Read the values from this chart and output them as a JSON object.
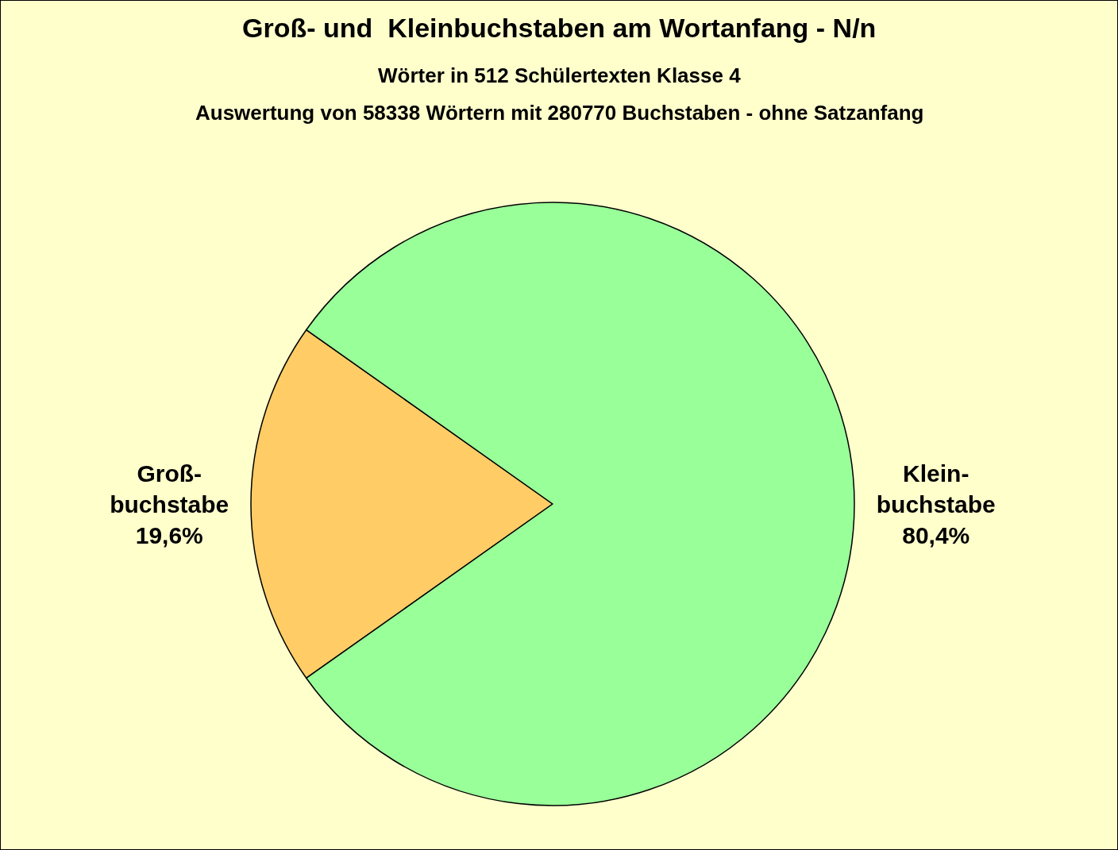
{
  "chart_data": {
    "type": "pie",
    "title": "Groß- und  Kleinbuchstaben am Wortanfang - N/n",
    "subtitle": "Wörter in 512 Schülertexten Klasse 4\nAuswertung von 58338 Wörtern mit 280770 Buchstaben - ohne Satzanfang",
    "categories": [
      "Groß-\nbuchstabe",
      "Klein-\nbuchstabe"
    ],
    "values": [
      19.6,
      80.4
    ],
    "value_labels": [
      "19,6%",
      "80,4%"
    ],
    "colors": [
      "#ffcc66",
      "#99ff99"
    ]
  }
}
